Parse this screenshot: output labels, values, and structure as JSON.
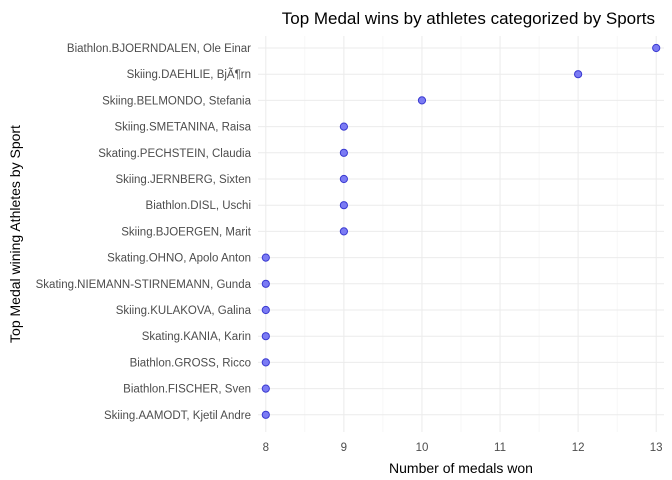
{
  "chart_data": {
    "type": "scatter",
    "title": "Top Medal wins by athletes categorized by Sports",
    "xlabel": "Number of medals won",
    "ylabel": "Top Medal wining Athletes by Sport",
    "xlim": [
      7.9,
      13.1
    ],
    "xticks": [
      8,
      9,
      10,
      11,
      12,
      13
    ],
    "grid": true,
    "categories": [
      "Biathlon.BJOERNDALEN, Ole Einar",
      "Skiing.DAEHLIE, BjÃ¶rn",
      "Skiing.BELMONDO, Stefania",
      "Skiing.SMETANINA, Raisa",
      "Skating.PECHSTEIN, Claudia",
      "Skiing.JERNBERG, Sixten",
      "Biathlon.DISL, Uschi",
      "Skiing.BJOERGEN, Marit",
      "Skating.OHNO, Apolo Anton",
      "Skating.NIEMANN-STIRNEMANN, Gunda",
      "Skiing.KULAKOVA, Galina",
      "Skating.KANIA, Karin",
      "Biathlon.GROSS, Ricco",
      "Biathlon.FISCHER, Sven",
      "Skiing.AAMODT, Kjetil Andre"
    ],
    "values": [
      13,
      12,
      10,
      9,
      9,
      9,
      9,
      9,
      8,
      8,
      8,
      8,
      8,
      8,
      8
    ],
    "point_color": "#7b7bf4"
  }
}
